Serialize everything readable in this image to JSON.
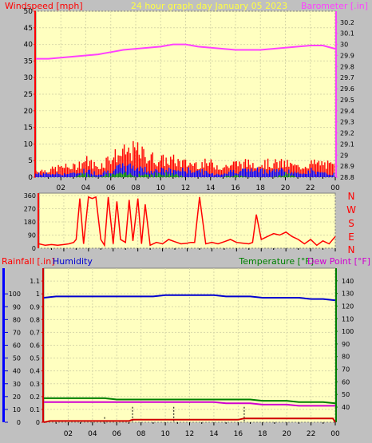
{
  "header": {
    "windspeed_label": "Windspeed [mph]",
    "center_title": "24 hour graph day   January 05 2023",
    "barometer_label": "Barometer [.in]"
  },
  "direction_labels": [
    "N",
    "W",
    "S",
    "E",
    "N"
  ],
  "lower_header": {
    "rainfall_label": "Rainfall [.in]",
    "humidity_label": "Humidity",
    "temperature_label": "Temperature [°F]",
    "dewpoint_label": "Dew Point [°F]"
  },
  "colors": {
    "background": "#c0c0c0",
    "plot_bg": "#ffffc0",
    "grid": "#d8d8a8",
    "barometer": "#ff40ff",
    "wind_gust": "#ff0000",
    "wind_avg": "#0000ff",
    "wind_low": "#00a000",
    "direction": "#ff0000",
    "humidity": "#0000d0",
    "temperature": "#008000",
    "dewpoint": "#d000d0",
    "rainfall": "#d00000"
  },
  "chart_data": [
    {
      "type": "line",
      "panel": "wind-barometer",
      "title": "24 hour graph day   January 05 2023",
      "x_ticks": [
        "02",
        "04",
        "06",
        "08",
        "10",
        "12",
        "14",
        "16",
        "18",
        "20",
        "22",
        "00"
      ],
      "left_axis": {
        "label": "Windspeed [mph]",
        "ylim": [
          0,
          50
        ],
        "ticks": [
          "0",
          "5",
          "10",
          "15",
          "20",
          "25",
          "30",
          "35",
          "40",
          "45",
          "50"
        ]
      },
      "right_axis": {
        "label": "Barometer [.in]",
        "ylim": [
          28.8,
          30.3
        ],
        "ticks": [
          "28.8",
          "28.9",
          "29",
          "29.1",
          "29.2",
          "29.3",
          "29.4",
          "29.5",
          "29.6",
          "29.7",
          "29.8",
          "29.9",
          "30",
          "30.1",
          "30.2"
        ]
      },
      "series": [
        {
          "name": "Barometer [.in]",
          "axis": "right",
          "x": [
            0,
            1,
            2,
            3,
            4,
            5,
            6,
            7,
            8,
            9,
            10,
            11,
            12,
            13,
            14,
            15,
            16,
            17,
            18,
            19,
            20,
            21,
            22,
            23,
            24
          ],
          "y": [
            29.87,
            29.87,
            29.88,
            29.89,
            29.9,
            29.91,
            29.93,
            29.95,
            29.96,
            29.97,
            29.98,
            30.0,
            30.0,
            29.98,
            29.97,
            29.96,
            29.95,
            29.95,
            29.95,
            29.96,
            29.97,
            29.98,
            29.99,
            29.99,
            29.96
          ]
        },
        {
          "name": "gust",
          "axis": "left",
          "x": [
            0,
            1,
            2,
            3,
            4,
            5,
            6,
            7,
            8,
            9,
            10,
            11,
            12,
            13,
            14,
            15,
            16,
            17,
            18,
            19,
            20,
            21,
            22,
            23,
            24
          ],
          "y": [
            2,
            2,
            3,
            3,
            5,
            3,
            6,
            7,
            8,
            6,
            5,
            5,
            4,
            4,
            4,
            3,
            4,
            4,
            4,
            4,
            4,
            3,
            4,
            4,
            3
          ]
        },
        {
          "name": "average",
          "axis": "left",
          "x": [
            0,
            1,
            2,
            3,
            4,
            5,
            6,
            7,
            8,
            9,
            10,
            11,
            12,
            13,
            14,
            15,
            16,
            17,
            18,
            19,
            20,
            21,
            22,
            23,
            24
          ],
          "y": [
            1,
            1,
            1,
            1,
            2,
            1,
            2,
            3,
            3,
            2,
            2,
            2,
            2,
            2,
            1,
            1,
            2,
            2,
            2,
            2,
            2,
            1,
            2,
            1,
            1
          ]
        },
        {
          "name": "low",
          "axis": "left",
          "x": [
            0,
            1,
            2,
            3,
            4,
            5,
            6,
            7,
            8,
            9,
            10,
            11,
            12,
            13,
            14,
            15,
            16,
            17,
            18,
            19,
            20,
            21,
            22,
            23,
            24
          ],
          "y": [
            0,
            0,
            0,
            0,
            1,
            0,
            1,
            1,
            1,
            1,
            1,
            1,
            0,
            0,
            0,
            0,
            1,
            0,
            0,
            0,
            1,
            0,
            0,
            0,
            0
          ]
        }
      ]
    },
    {
      "type": "line",
      "panel": "wind-direction",
      "x_ticks": [
        "02",
        "04",
        "06",
        "08",
        "10",
        "12",
        "14",
        "16",
        "18",
        "20",
        "22",
        "00"
      ],
      "left_axis": {
        "ylim": [
          0,
          360
        ],
        "ticks": [
          "0",
          "90",
          "180",
          "270",
          "360"
        ]
      },
      "right_labels": [
        "N",
        "W",
        "S",
        "E",
        "N"
      ],
      "series": [
        {
          "name": "direction",
          "x": [
            0,
            0.5,
            1,
            1.5,
            2,
            2.4,
            2.8,
            3.0,
            3.3,
            3.6,
            4.0,
            4.3,
            4.6,
            5.0,
            5.3,
            5.6,
            6.0,
            6.3,
            6.6,
            7.0,
            7.3,
            7.6,
            8.0,
            8.3,
            8.6,
            9.0,
            9.5,
            10,
            10.5,
            11,
            11.5,
            12,
            12.3,
            12.6,
            13,
            13.5,
            14,
            14.5,
            15,
            15.5,
            16,
            16.5,
            17,
            17.3,
            17.6,
            18,
            18.5,
            19,
            19.5,
            20,
            20.5,
            21,
            21.5,
            22,
            22.5,
            23,
            23.5,
            24
          ],
          "y": [
            30,
            20,
            25,
            20,
            25,
            30,
            40,
            60,
            340,
            30,
            350,
            340,
            350,
            60,
            20,
            350,
            30,
            320,
            60,
            40,
            330,
            50,
            340,
            30,
            300,
            20,
            40,
            30,
            60,
            45,
            30,
            35,
            40,
            40,
            350,
            30,
            40,
            30,
            45,
            60,
            40,
            35,
            30,
            40,
            230,
            60,
            80,
            100,
            90,
            110,
            80,
            60,
            30,
            60,
            20,
            50,
            30,
            80
          ]
        }
      ]
    },
    {
      "type": "line",
      "panel": "rain-humidity-temperature",
      "x_ticks": [
        "02",
        "04",
        "06",
        "08",
        "10",
        "12",
        "14",
        "16",
        "18",
        "20",
        "22",
        "00"
      ],
      "left_axis": {
        "label": "Rainfall [.in]",
        "ylim": [
          0,
          1.2
        ],
        "ticks": [
          "0",
          "0.1",
          "0.2",
          "0.3",
          "0.4",
          "0.5",
          "0.6",
          "0.7",
          "0.8",
          "0.9",
          "1",
          "1.1"
        ]
      },
      "humidity_axis": {
        "label": "Humidity",
        "ylim": [
          0,
          120
        ],
        "ticks": [
          "0",
          "10",
          "20",
          "30",
          "40",
          "50",
          "60",
          "70",
          "80",
          "90",
          "100"
        ]
      },
      "right_axis": {
        "label": "Temperature [°F]",
        "ylim": [
          28,
          150
        ],
        "ticks": [
          "40",
          "50",
          "60",
          "70",
          "80",
          "90",
          "100",
          "110",
          "120",
          "130",
          "140"
        ]
      },
      "series": [
        {
          "name": "Humidity",
          "axis": "humidity",
          "x": [
            0,
            1,
            2,
            3,
            4,
            5,
            6,
            7,
            8,
            9,
            10,
            11,
            12,
            13,
            14,
            15,
            16,
            17,
            18,
            19,
            20,
            21,
            22,
            23,
            24
          ],
          "y": [
            97,
            98,
            98,
            98,
            98,
            98,
            98,
            98,
            98,
            98,
            99,
            99,
            99,
            99,
            99,
            98,
            98,
            98,
            97,
            97,
            97,
            97,
            96,
            96,
            95
          ]
        },
        {
          "name": "Temperature [°F]",
          "axis": "right",
          "x": [
            0,
            1,
            2,
            3,
            4,
            5,
            6,
            7,
            8,
            9,
            10,
            11,
            12,
            13,
            14,
            15,
            16,
            17,
            18,
            19,
            20,
            21,
            22,
            23,
            24
          ],
          "y": [
            47,
            47,
            47,
            47,
            47,
            47,
            46,
            46,
            46,
            46,
            46,
            46,
            46,
            46,
            46,
            46,
            46,
            46,
            45,
            45,
            45,
            44,
            44,
            44,
            43
          ]
        },
        {
          "name": "Dew Point [°F]",
          "axis": "right",
          "x": [
            0,
            1,
            2,
            3,
            4,
            5,
            6,
            7,
            8,
            9,
            10,
            11,
            12,
            13,
            14,
            15,
            16,
            17,
            18,
            19,
            20,
            21,
            22,
            23,
            24
          ],
          "y": [
            44,
            44,
            44,
            44,
            44,
            44,
            44,
            44,
            44,
            44,
            44,
            44,
            44,
            44,
            44,
            43,
            43,
            43,
            42,
            42,
            42,
            41,
            41,
            41,
            41
          ]
        },
        {
          "name": "Rainfall [.in]",
          "axis": "left",
          "x": [
            0,
            0.5,
            1,
            2,
            3,
            4,
            5,
            6,
            7,
            7.3,
            8,
            9,
            10,
            10.5,
            11,
            12,
            13,
            14,
            15,
            16,
            16.5,
            17,
            18,
            19,
            20,
            21,
            22,
            23,
            23.8,
            24
          ],
          "y": [
            0,
            0.01,
            0.01,
            0.01,
            0.01,
            0.01,
            0.01,
            0.01,
            0.01,
            0.02,
            0.02,
            0.02,
            0.02,
            0.02,
            0.02,
            0.02,
            0.02,
            0.02,
            0.02,
            0.02,
            0.03,
            0.03,
            0.03,
            0.03,
            0.03,
            0.03,
            0.03,
            0.03,
            0.03,
            0
          ]
        }
      ]
    }
  ]
}
